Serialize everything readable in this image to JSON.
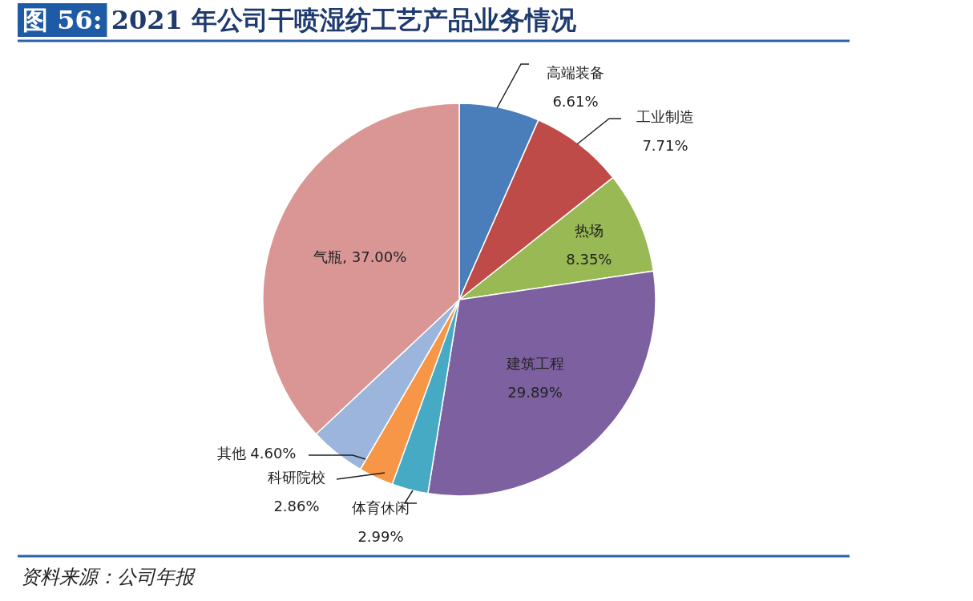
{
  "chart_data": {
    "type": "pie",
    "title": "图 56: 2021 年公司干喷湿纺工艺产品业务情况",
    "categories": [
      "高端装备",
      "工业制造",
      "热场",
      "建筑工程",
      "体育休闲",
      "科研院校",
      "其他",
      "气瓶"
    ],
    "values": [
      6.61,
      7.71,
      8.35,
      29.89,
      2.99,
      2.86,
      4.6,
      37.0
    ],
    "colors": [
      "#4a7ebb",
      "#be4b48",
      "#98b954",
      "#7d60a0",
      "#46aac5",
      "#f79646",
      "#9bb5dc",
      "#d99694"
    ],
    "value_labels": [
      "6.61%",
      "7.71%",
      "8.35%",
      "29.89%",
      "2.99%",
      "2.86%",
      "4.60%",
      "37.00%"
    ],
    "annotations": [
      "资料来源：公司年报"
    ],
    "legend": false
  }
}
